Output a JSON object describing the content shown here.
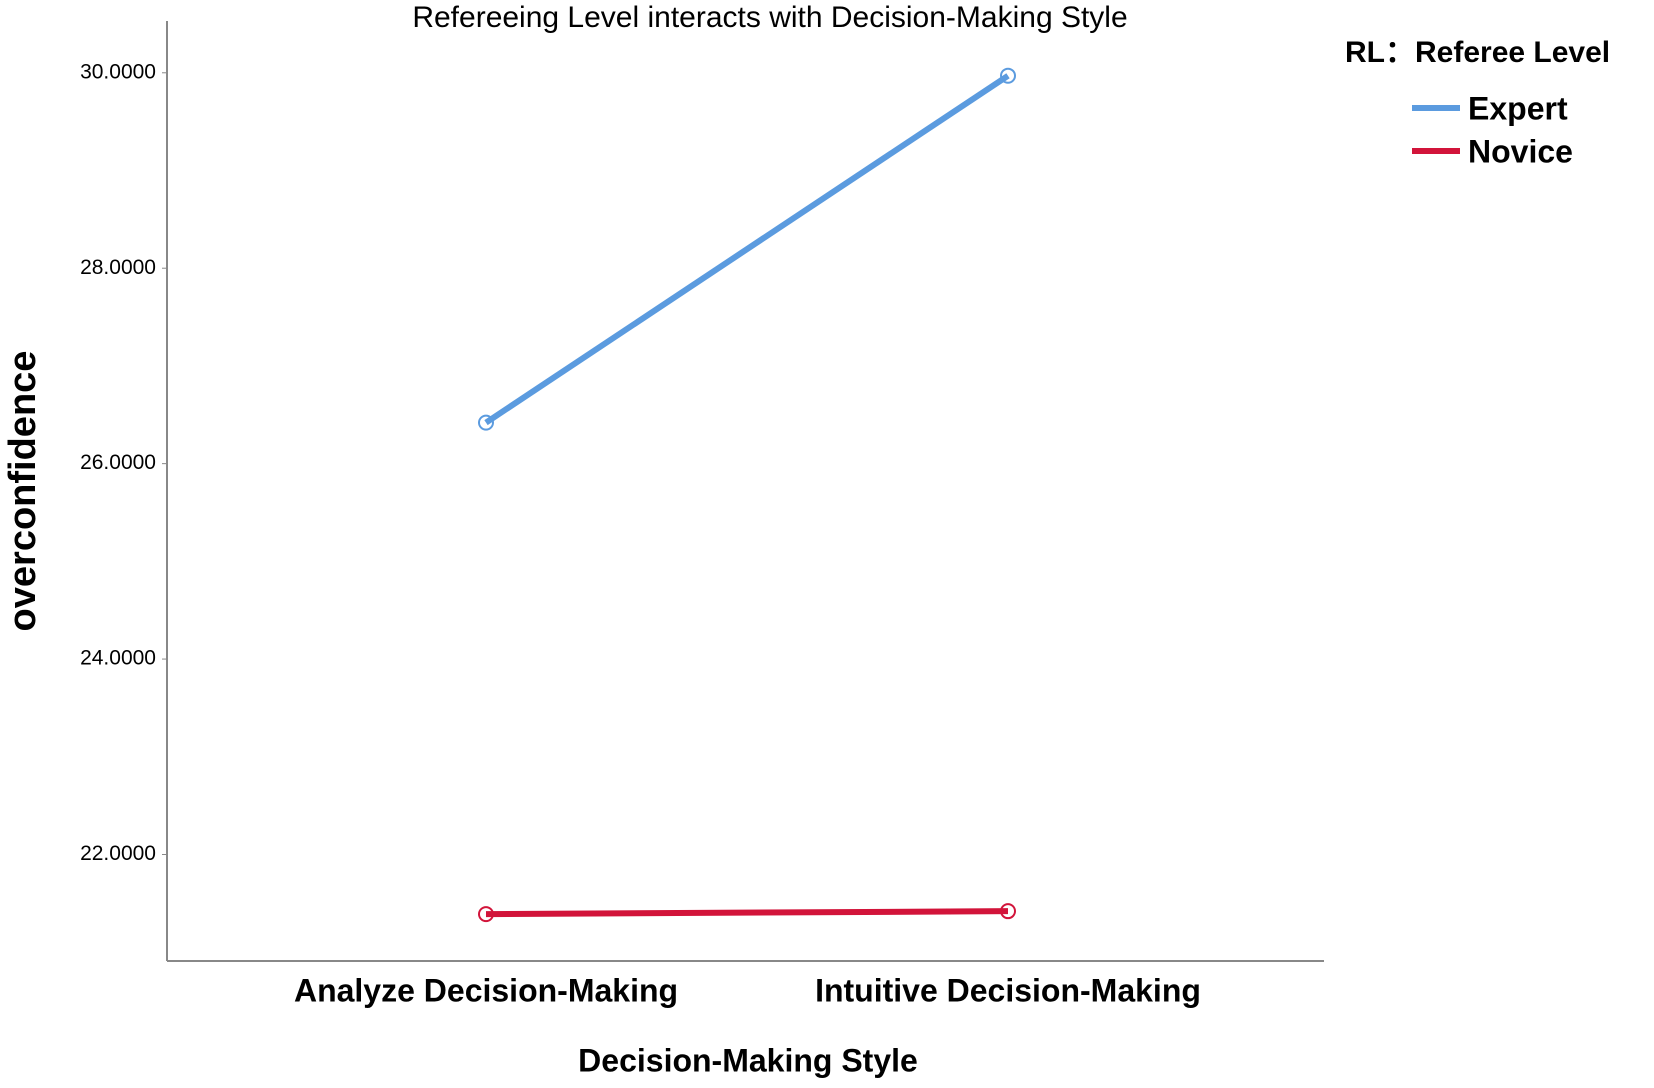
{
  "chart_data": {
    "type": "line",
    "title": "Refereeing Level interacts with Decision-Making Style",
    "x_label": "Decision-Making Style",
    "y_label": "overconfidence",
    "legend_title": "RL：Referee Level",
    "categories": [
      "Analyze Decision-Making",
      "Intuitive Decision-Making"
    ],
    "series": [
      {
        "name": "Expert",
        "color": "#5b9bdf",
        "values": [
          26.42,
          29.97
        ]
      },
      {
        "name": "Novice",
        "color": "#d2143a",
        "values": [
          21.39,
          21.42
        ]
      }
    ],
    "ylim": [
      20.91,
      30.53
    ],
    "yticks": [
      {
        "value": 22,
        "label": "22.0000"
      },
      {
        "value": 24,
        "label": "24.0000"
      },
      {
        "value": 26,
        "label": "26.0000"
      },
      {
        "value": 28,
        "label": "28.0000"
      },
      {
        "value": 30,
        "label": "30.0000"
      }
    ],
    "grid": false,
    "legend": "top-right"
  }
}
